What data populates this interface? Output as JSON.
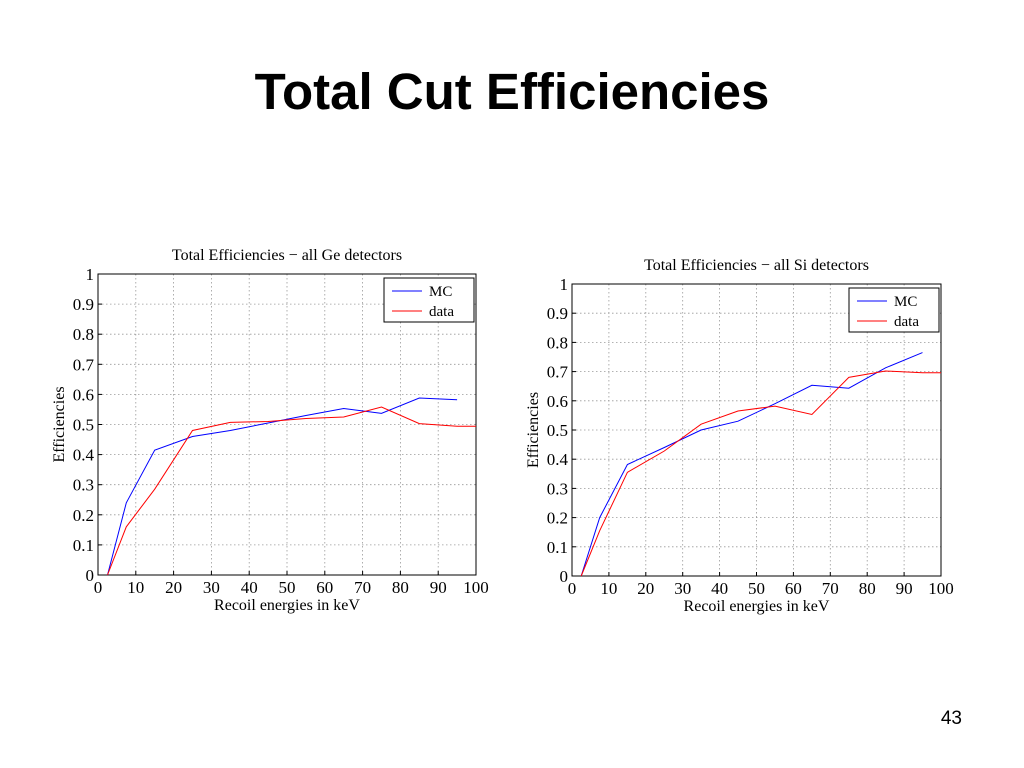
{
  "slide": {
    "title": "Total Cut Efficiencies",
    "page_number": "43"
  },
  "colors": {
    "mc": "#0000ff",
    "data": "#ff0000"
  },
  "chart_data": [
    {
      "type": "line",
      "title": "Total Efficiencies − all Ge detectors",
      "xlabel": "Recoil energies in keV",
      "ylabel": "Efficiencies",
      "xlim": [
        0,
        100
      ],
      "ylim": [
        0,
        1
      ],
      "xticks": [
        0,
        10,
        20,
        30,
        40,
        50,
        60,
        70,
        80,
        90,
        100
      ],
      "yticks": [
        0,
        0.1,
        0.2,
        0.3,
        0.4,
        0.5,
        0.6,
        0.7,
        0.8,
        0.9,
        1
      ],
      "xtick_labels": [
        "0",
        "10",
        "20",
        "30",
        "40",
        "50",
        "60",
        "70",
        "80",
        "90",
        "100"
      ],
      "ytick_labels": [
        "0",
        "0.1",
        "0.2",
        "0.3",
        "0.4",
        "0.5",
        "0.6",
        "0.7",
        "0.8",
        "0.9",
        "1"
      ],
      "grid": true,
      "legend": "top-right",
      "series": [
        {
          "name": "MC",
          "color": "#0000ff",
          "points": [
            [
              2.5,
              0
            ],
            [
              7.5,
              0.24
            ],
            [
              15,
              0.415
            ],
            [
              25,
              0.46
            ],
            [
              35,
              0.48
            ],
            [
              45,
              0.505
            ],
            [
              55,
              0.53
            ],
            [
              65,
              0.553
            ],
            [
              75,
              0.537
            ],
            [
              85,
              0.588
            ],
            [
              95,
              0.582
            ]
          ]
        },
        {
          "name": "data",
          "color": "#ff0000",
          "points": [
            [
              2.5,
              0
            ],
            [
              7.5,
              0.16
            ],
            [
              15,
              0.285
            ],
            [
              25,
              0.48
            ],
            [
              35,
              0.507
            ],
            [
              45,
              0.51
            ],
            [
              55,
              0.52
            ],
            [
              65,
              0.525
            ],
            [
              75,
              0.558
            ],
            [
              85,
              0.503
            ],
            [
              95,
              0.494
            ],
            [
              100,
              0.494
            ]
          ]
        }
      ]
    },
    {
      "type": "line",
      "title": "Total Efficiencies − all Si detectors",
      "xlabel": "Recoil energies in keV",
      "ylabel": "Efficiencies",
      "xlim": [
        0,
        100
      ],
      "ylim": [
        0,
        1
      ],
      "xticks": [
        0,
        10,
        20,
        30,
        40,
        50,
        60,
        70,
        80,
        90,
        100
      ],
      "yticks": [
        0,
        0.1,
        0.2,
        0.3,
        0.4,
        0.5,
        0.6,
        0.7,
        0.8,
        0.9,
        1
      ],
      "xtick_labels": [
        "0",
        "10",
        "20",
        "30",
        "40",
        "50",
        "60",
        "70",
        "80",
        "90",
        "100"
      ],
      "ytick_labels": [
        "0",
        "0.1",
        "0.2",
        "0.3",
        "0.4",
        "0.5",
        "0.6",
        "0.7",
        "0.8",
        "0.9",
        "1"
      ],
      "grid": true,
      "legend": "top-right",
      "series": [
        {
          "name": "MC",
          "color": "#0000ff",
          "points": [
            [
              2.5,
              0
            ],
            [
              7.5,
              0.2
            ],
            [
              15,
              0.382
            ],
            [
              25,
              0.44
            ],
            [
              35,
              0.5
            ],
            [
              45,
              0.53
            ],
            [
              55,
              0.59
            ],
            [
              65,
              0.653
            ],
            [
              75,
              0.643
            ],
            [
              85,
              0.713
            ],
            [
              95,
              0.765
            ]
          ]
        },
        {
          "name": "data",
          "color": "#ff0000",
          "points": [
            [
              2.5,
              0
            ],
            [
              7.5,
              0.155
            ],
            [
              15,
              0.355
            ],
            [
              25,
              0.428
            ],
            [
              35,
              0.52
            ],
            [
              45,
              0.565
            ],
            [
              55,
              0.582
            ],
            [
              65,
              0.553
            ],
            [
              75,
              0.68
            ],
            [
              85,
              0.702
            ],
            [
              95,
              0.696
            ],
            [
              100,
              0.696
            ]
          ]
        }
      ]
    }
  ]
}
